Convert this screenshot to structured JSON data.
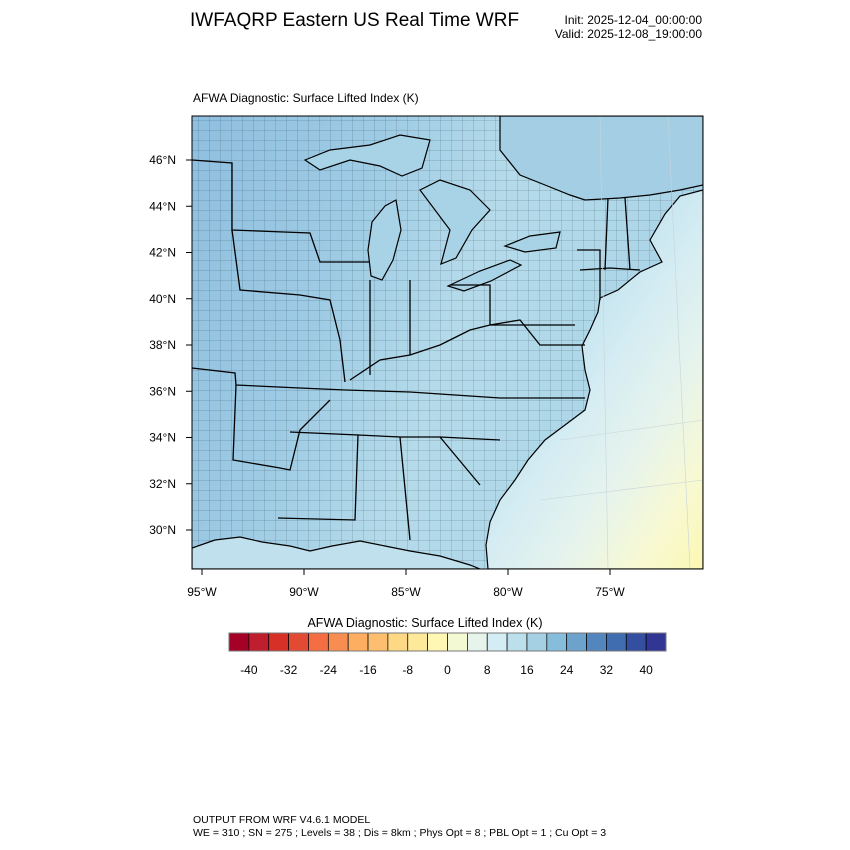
{
  "header": {
    "title": "IWFAQRP Eastern US Real Time WRF",
    "init": "Init: 2025-12-04_00:00:00",
    "valid": "Valid: 2025-12-08_19:00:00"
  },
  "map": {
    "subtitle": "AFWA Diagnostic: Surface Lifted Index   (K)"
  },
  "chart_data": {
    "type": "heatmap",
    "title": "AFWA Diagnostic: Surface Lifted Index   (K)",
    "lat_labels": [
      "46°N",
      "44°N",
      "42°N",
      "40°N",
      "38°N",
      "36°N",
      "34°N",
      "32°N",
      "30°N"
    ],
    "lon_labels": [
      "95°W",
      "90°W",
      "85°W",
      "80°W",
      "75°W"
    ],
    "colorbar": {
      "title": "AFWA Diagnostic: Surface Lifted Index  (K)",
      "range": [
        -44,
        44
      ],
      "step": 4,
      "colors": [
        "#a50026",
        "#be1e2d",
        "#d73027",
        "#e34a33",
        "#f46d43",
        "#f88d52",
        "#fdae61",
        "#fdbf6f",
        "#fed884",
        "#fee99a",
        "#fff7b3",
        "#f3f9d2",
        "#e6f4ec",
        "#d4ecf3",
        "#bcdfec",
        "#a5d0e3",
        "#86bddb",
        "#6ca2cc",
        "#5286bc",
        "#3f6db0",
        "#344fa0",
        "#313695"
      ],
      "tick_labels": [
        "-40",
        "-32",
        "-24",
        "-16",
        "-8",
        "0",
        "8",
        "16",
        "24",
        "32",
        "40"
      ],
      "tick_values": [
        -40,
        -32,
        -24,
        -16,
        -8,
        0,
        8,
        16,
        24,
        32,
        40
      ]
    },
    "field_summary": {
      "land_west": 16,
      "land_east": 12,
      "ocean_near": 10,
      "ocean_far_southeast": 2
    }
  },
  "footer": {
    "line1": "OUTPUT FROM WRF V4.6.1 MODEL",
    "line2": "WE = 310 ; SN = 275 ; Levels = 38 ; Dis = 8km ; Phys Opt = 8 ; PBL Opt = 1 ; Cu Opt = 3"
  }
}
